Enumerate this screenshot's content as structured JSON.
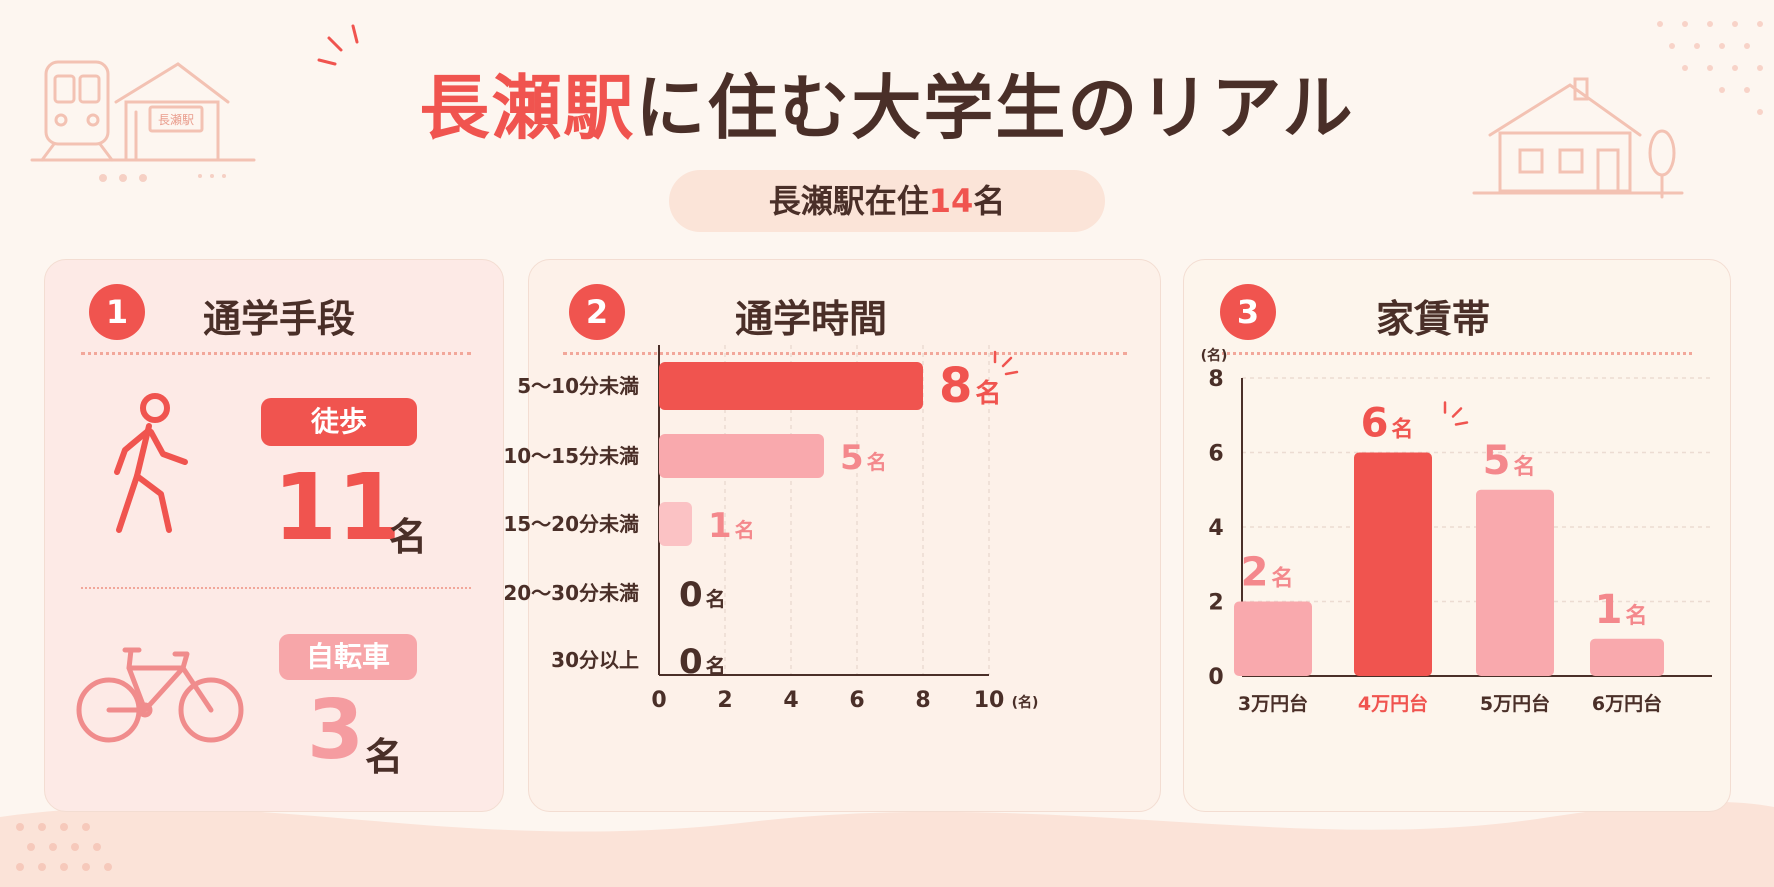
{
  "header": {
    "title_highlight": "長瀬駅",
    "title_rest": "に住む大学生のリアル",
    "station_sign": "長瀬駅",
    "badge_prefix": "長瀬駅在住",
    "badge_count": "14",
    "badge_suffix": "名"
  },
  "colors": {
    "accent": "#f0544f",
    "pink": "#f9a9ad",
    "light_pink": "#fbc2c4",
    "text": "#4a2f28"
  },
  "panel1": {
    "number": "1",
    "title": "通学手段",
    "modes": [
      {
        "label": "徒歩",
        "count": "11",
        "unit": "名",
        "icon": "walking-person-icon"
      },
      {
        "label": "自転車",
        "count": "3",
        "unit": "名",
        "icon": "bicycle-icon"
      }
    ]
  },
  "panel2": {
    "number": "2",
    "title": "通学時間"
  },
  "panel3": {
    "number": "3",
    "title": "家賃帯"
  },
  "chart_data": [
    {
      "type": "bar",
      "orientation": "horizontal",
      "title": "通学時間",
      "categories": [
        "5～10分未満",
        "10～15分未満",
        "15～20分未満",
        "20～30分未満",
        "30分以上"
      ],
      "values": [
        8,
        5,
        1,
        0,
        0
      ],
      "value_unit": "名",
      "xlabel": "(名)",
      "xlim": [
        0,
        10
      ],
      "xticks": [
        "0",
        "2",
        "4",
        "6",
        "8",
        "10"
      ],
      "grid": true,
      "highlight_index": 0
    },
    {
      "type": "bar",
      "orientation": "vertical",
      "title": "家賃帯",
      "categories": [
        "3万円台",
        "4万円台",
        "5万円台",
        "6万円台"
      ],
      "values": [
        2,
        6,
        5,
        1
      ],
      "value_unit": "名",
      "ylabel": "(名)",
      "ylim": [
        0,
        8
      ],
      "yticks": [
        "0",
        "2",
        "4",
        "6",
        "8"
      ],
      "grid": true,
      "highlight_index": 1
    }
  ]
}
